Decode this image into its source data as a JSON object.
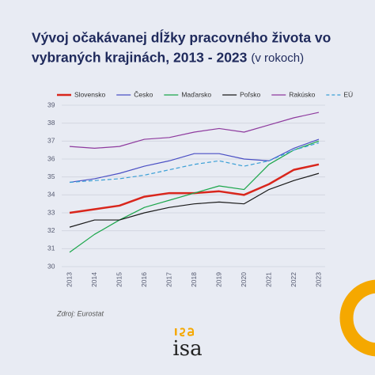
{
  "chart_data": {
    "type": "line",
    "title": "Vývoj očakávanej dĺžky pracovného života vo",
    "title_line2": "vybraných krajinách, 2013 - 2023",
    "subtitle": "(v rokoch)",
    "source": "Zdroj: Eurostat",
    "x": [
      2013,
      2014,
      2015,
      2016,
      2017,
      2018,
      2019,
      2020,
      2021,
      2022,
      2023
    ],
    "xlim": [
      2013,
      2023
    ],
    "xticks": [
      2013,
      2014,
      2015,
      2016,
      2017,
      2018,
      2019,
      2020,
      2021,
      2022,
      2023
    ],
    "ylim": [
      30,
      39
    ],
    "yticks": [
      30,
      31,
      32,
      33,
      34,
      35,
      36,
      37,
      38,
      39
    ],
    "grid": true,
    "legend": "top",
    "series": [
      {
        "name": "Slovensko",
        "color": "#d9261c",
        "width": 2.5,
        "dashed": false,
        "values": [
          33.0,
          33.2,
          33.4,
          33.9,
          34.1,
          34.1,
          34.2,
          34.0,
          34.6,
          35.4,
          35.7
        ]
      },
      {
        "name": "Česko",
        "color": "#4a4fc4",
        "width": 1.2,
        "dashed": false,
        "values": [
          34.7,
          34.9,
          35.2,
          35.6,
          35.9,
          36.3,
          36.3,
          36.0,
          35.9,
          36.6,
          37.1
        ]
      },
      {
        "name": "Maďarsko",
        "color": "#1aa64a",
        "width": 1.2,
        "dashed": false,
        "values": [
          30.8,
          31.8,
          32.6,
          33.3,
          33.7,
          34.1,
          34.5,
          34.3,
          35.7,
          36.5,
          37.0
        ]
      },
      {
        "name": "Poľsko",
        "color": "#1a1a1a",
        "width": 1.2,
        "dashed": false,
        "values": [
          32.2,
          32.6,
          32.6,
          33.0,
          33.3,
          33.5,
          33.6,
          33.5,
          34.3,
          34.8,
          35.2
        ]
      },
      {
        "name": "Rakúsko",
        "color": "#8e3a9e",
        "width": 1.2,
        "dashed": false,
        "values": [
          36.7,
          36.6,
          36.7,
          37.1,
          37.2,
          37.5,
          37.7,
          37.5,
          37.9,
          38.3,
          38.6
        ]
      },
      {
        "name": "EÚ",
        "color": "#3a9fd6",
        "width": 1.2,
        "dashed": true,
        "values": [
          34.7,
          34.8,
          34.9,
          35.1,
          35.4,
          35.7,
          35.9,
          35.6,
          35.9,
          36.5,
          36.9
        ]
      }
    ]
  },
  "logo": "isa"
}
